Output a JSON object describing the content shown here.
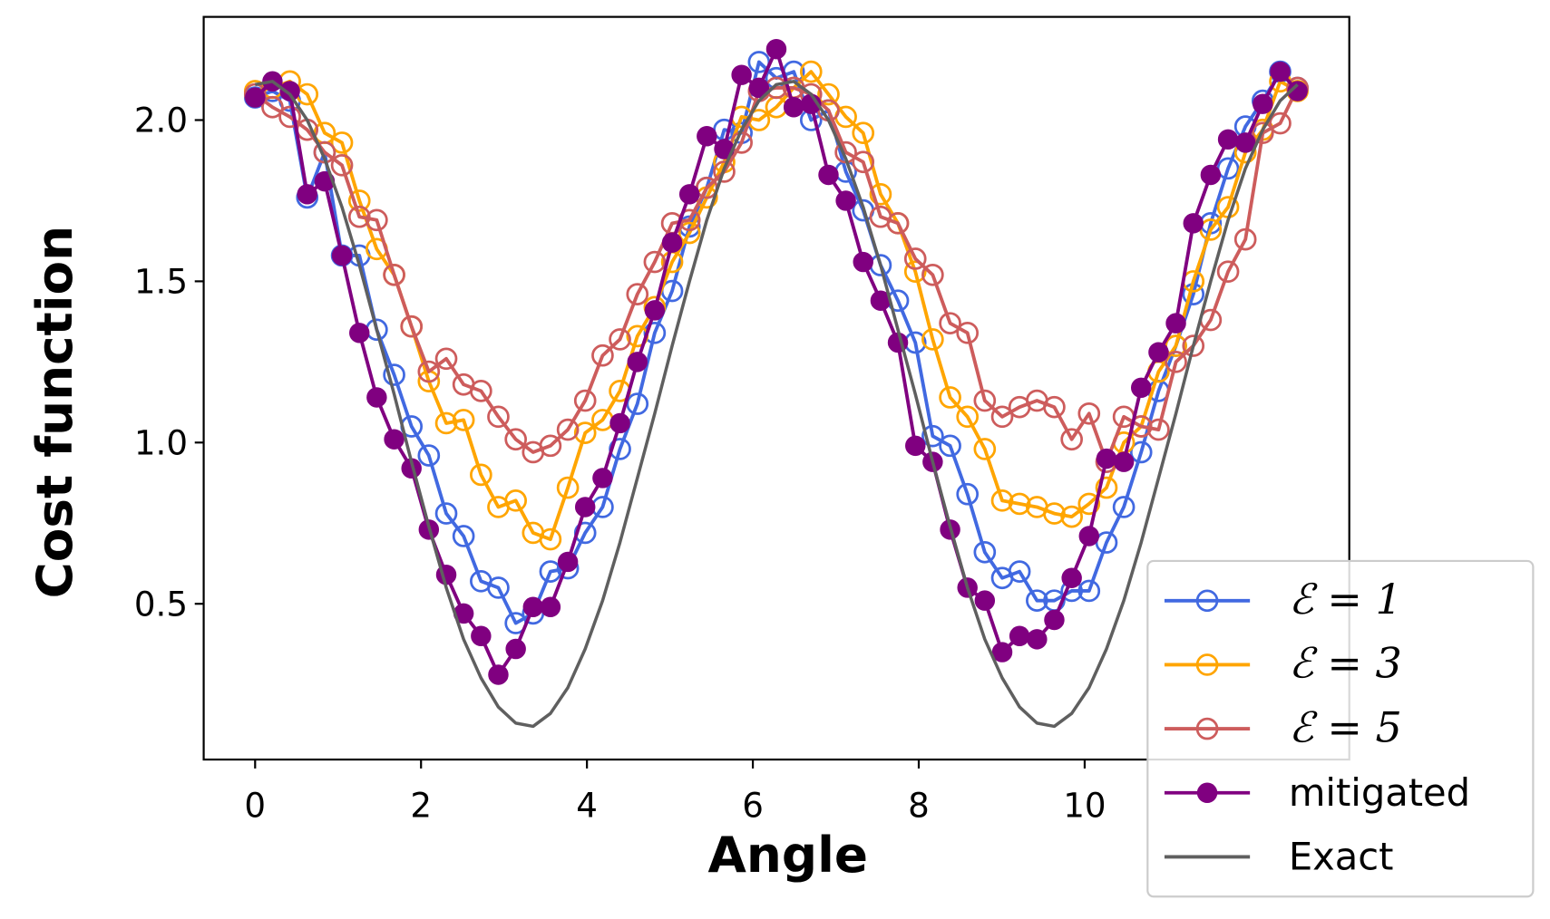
{
  "chart_data": {
    "type": "line",
    "xlabel": "Angle",
    "ylabel": "Cost function",
    "xlim": [
      -0.62,
      13.19
    ],
    "ylim": [
      0.017,
      2.32
    ],
    "xticks": [
      0,
      2,
      4,
      6,
      8,
      10
    ],
    "yticks": [
      0.5,
      {
        "value": 1,
        "label": "1.0"
      },
      1.5,
      {
        "value": 2,
        "label": "2.0"
      }
    ],
    "legend": "lower right",
    "x": [
      0,
      0.209,
      0.419,
      0.628,
      0.838,
      1.047,
      1.257,
      1.466,
      1.676,
      1.885,
      2.094,
      2.304,
      2.513,
      2.723,
      2.932,
      3.142,
      3.351,
      3.56,
      3.77,
      3.979,
      4.189,
      4.398,
      4.608,
      4.817,
      5.027,
      5.236,
      5.445,
      5.655,
      5.864,
      6.074,
      6.283,
      6.493,
      6.702,
      6.912,
      7.121,
      7.33,
      7.54,
      7.749,
      7.959,
      8.168,
      8.378,
      8.587,
      8.796,
      9.006,
      9.215,
      9.425,
      9.634,
      9.844,
      10.053,
      10.263,
      10.472,
      10.681,
      10.891,
      11.1,
      11.31,
      11.519,
      11.729,
      11.938,
      12.147,
      12.357,
      12.566
    ],
    "series": [
      {
        "name": "ℰ = 1",
        "color": "#4169e1",
        "marker": "open",
        "values": [
          2.07,
          2.09,
          2.06,
          1.76,
          1.9,
          1.58,
          1.58,
          1.35,
          1.21,
          1.05,
          0.96,
          0.78,
          0.71,
          0.57,
          0.55,
          0.44,
          0.47,
          0.6,
          0.61,
          0.72,
          0.8,
          0.98,
          1.12,
          1.34,
          1.47,
          1.67,
          1.79,
          1.97,
          1.96,
          2.18,
          2.13,
          2.15,
          2.0,
          2.03,
          1.84,
          1.72,
          1.55,
          1.44,
          1.31,
          1.02,
          0.99,
          0.84,
          0.66,
          0.58,
          0.6,
          0.51,
          0.51,
          0.54,
          0.54,
          0.69,
          0.8,
          0.97,
          1.16,
          1.3,
          1.46,
          1.68,
          1.85,
          1.98,
          2.06,
          2.15,
          2.1
        ]
      },
      {
        "name": "ℰ = 3",
        "color": "#ffa500",
        "marker": "open",
        "values": [
          2.09,
          2.1,
          2.12,
          2.08,
          1.96,
          1.93,
          1.75,
          1.6,
          1.52,
          1.36,
          1.19,
          1.06,
          1.07,
          0.9,
          0.8,
          0.82,
          0.72,
          0.7,
          0.86,
          1.03,
          1.07,
          1.16,
          1.33,
          1.42,
          1.56,
          1.65,
          1.76,
          1.87,
          2.01,
          2.0,
          2.04,
          2.1,
          2.15,
          2.08,
          2.01,
          1.96,
          1.77,
          1.68,
          1.53,
          1.32,
          1.14,
          1.08,
          0.98,
          0.82,
          0.81,
          0.8,
          0.78,
          0.77,
          0.81,
          0.86,
          1.0,
          1.05,
          1.22,
          1.3,
          1.5,
          1.66,
          1.73,
          1.9,
          1.97,
          2.12,
          2.09
        ]
      },
      {
        "name": "ℰ = 5",
        "color": "#cd5c5c",
        "marker": "open",
        "values": [
          2.08,
          2.04,
          2.01,
          1.97,
          1.9,
          1.86,
          1.7,
          1.69,
          1.52,
          1.36,
          1.22,
          1.26,
          1.18,
          1.16,
          1.08,
          1.01,
          0.97,
          0.99,
          1.04,
          1.13,
          1.27,
          1.32,
          1.46,
          1.56,
          1.68,
          1.69,
          1.79,
          1.84,
          1.93,
          2.09,
          2.1,
          2.1,
          2.08,
          2.03,
          1.9,
          1.87,
          1.7,
          1.68,
          1.57,
          1.52,
          1.37,
          1.34,
          1.13,
          1.08,
          1.11,
          1.13,
          1.11,
          1.01,
          1.09,
          0.94,
          1.08,
          1.05,
          1.04,
          1.25,
          1.3,
          1.38,
          1.53,
          1.63,
          1.96,
          1.99,
          2.1
        ]
      },
      {
        "name": "mitigated",
        "color": "#800080",
        "marker": "filled",
        "values": [
          2.07,
          2.12,
          2.09,
          1.77,
          1.81,
          1.58,
          1.34,
          1.14,
          1.01,
          0.92,
          0.73,
          0.59,
          0.47,
          0.4,
          0.28,
          0.36,
          0.49,
          0.49,
          0.63,
          0.8,
          0.89,
          1.06,
          1.25,
          1.41,
          1.62,
          1.77,
          1.95,
          1.91,
          2.14,
          2.1,
          2.22,
          2.04,
          2.05,
          1.83,
          1.75,
          1.56,
          1.44,
          1.31,
          0.99,
          0.94,
          0.73,
          0.55,
          0.51,
          0.35,
          0.4,
          0.39,
          0.45,
          0.58,
          0.71,
          0.95,
          0.94,
          1.17,
          1.28,
          1.37,
          1.68,
          1.83,
          1.94,
          1.93,
          2.05,
          2.15,
          2.09
        ]
      },
      {
        "name": "Exact",
        "color": "#5f5f5f",
        "marker": null,
        "values": [
          2.11,
          2.12,
          2.08,
          2.0,
          1.88,
          1.73,
          1.55,
          1.35,
          1.15,
          0.94,
          0.74,
          0.55,
          0.39,
          0.27,
          0.18,
          0.13,
          0.12,
          0.16,
          0.24,
          0.36,
          0.51,
          0.69,
          0.89,
          1.09,
          1.3,
          1.5,
          1.69,
          1.85,
          1.97,
          2.06,
          2.11,
          2.12,
          2.08,
          2.0,
          1.88,
          1.73,
          1.55,
          1.35,
          1.15,
          0.94,
          0.74,
          0.55,
          0.39,
          0.27,
          0.18,
          0.13,
          0.12,
          0.16,
          0.24,
          0.36,
          0.51,
          0.69,
          0.89,
          1.09,
          1.3,
          1.5,
          1.69,
          1.85,
          1.97,
          2.06,
          2.11
        ]
      }
    ]
  }
}
